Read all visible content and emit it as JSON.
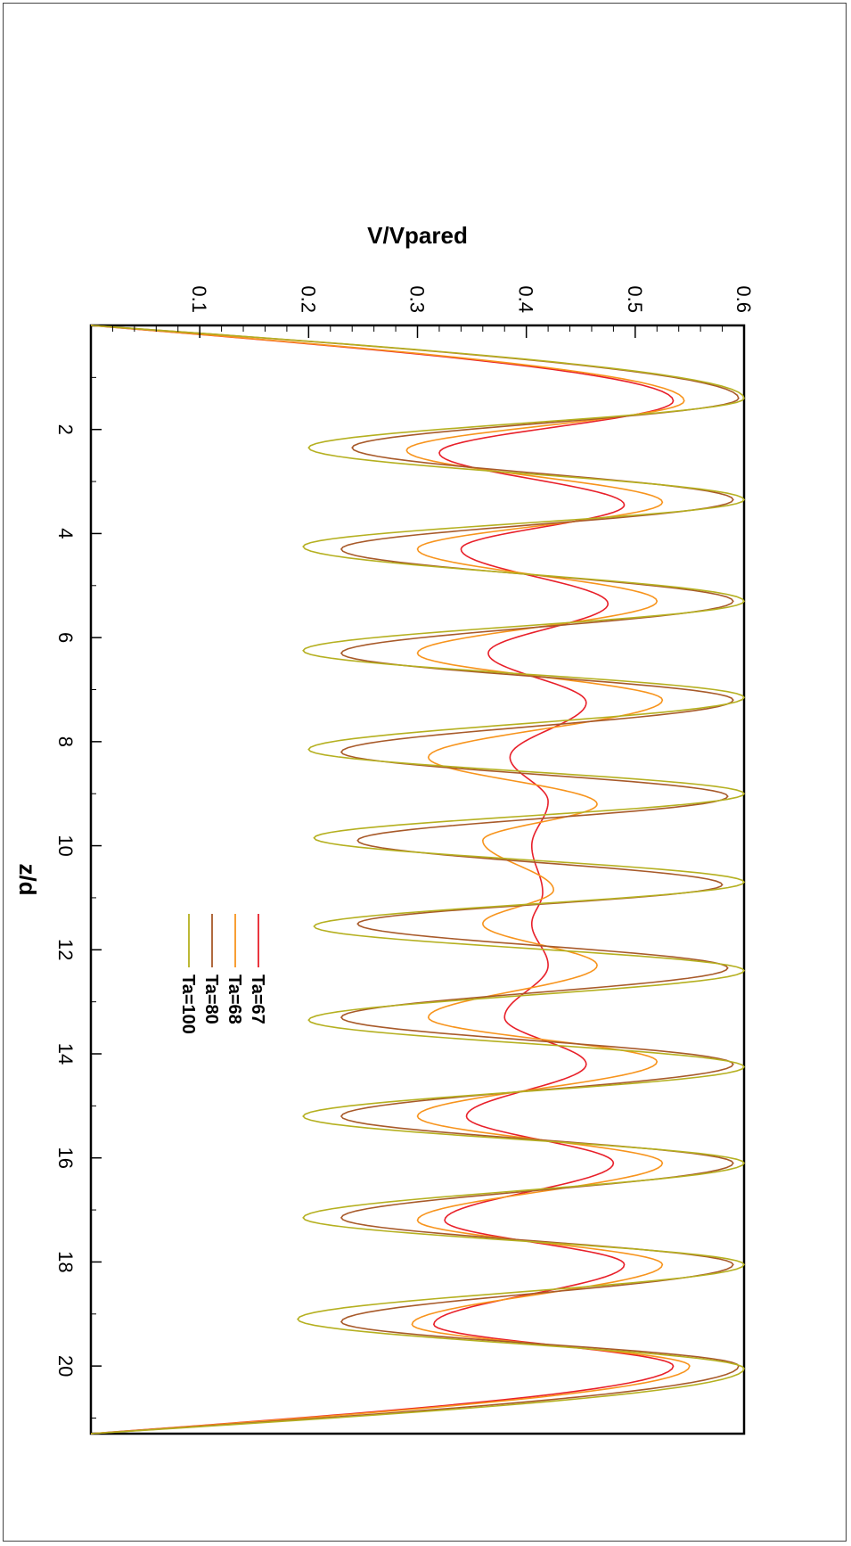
{
  "chart_data": {
    "type": "line",
    "xlabel": "z/d",
    "ylabel": "V/Vpared",
    "xlim": [
      0,
      21.3
    ],
    "ylim": [
      0,
      0.6
    ],
    "x_ticks": [
      2,
      4,
      6,
      8,
      10,
      12,
      14,
      16,
      18,
      20
    ],
    "x_tick_labels": [
      "2",
      "4",
      "6",
      "8",
      "10",
      "12",
      "14",
      "16",
      "18",
      "20"
    ],
    "y_ticks": [
      0.1,
      0.2,
      0.3,
      0.4,
      0.5,
      0.6
    ],
    "y_tick_labels": [
      "0.1",
      "0.2",
      "0.3",
      "0.4",
      "0.5",
      "0.6"
    ],
    "grid": false,
    "legend_position": "center",
    "orientation": "rotated 90 degrees clockwise",
    "series": [
      {
        "name": "Ta=67",
        "color": "#e8202a",
        "peaks": [
          [
            1.45,
            0.535
          ],
          [
            3.45,
            0.49
          ],
          [
            5.35,
            0.475
          ],
          [
            7.25,
            0.455
          ],
          [
            9.15,
            0.42
          ],
          [
            10.9,
            0.415
          ],
          [
            12.3,
            0.42
          ],
          [
            14.2,
            0.455
          ],
          [
            16.1,
            0.48
          ],
          [
            18.05,
            0.49
          ],
          [
            20.0,
            0.535
          ]
        ],
        "troughs": [
          [
            2.45,
            0.32
          ],
          [
            4.3,
            0.34
          ],
          [
            6.3,
            0.365
          ],
          [
            8.3,
            0.385
          ],
          [
            10.0,
            0.405
          ],
          [
            11.5,
            0.405
          ],
          [
            13.3,
            0.38
          ],
          [
            15.2,
            0.345
          ],
          [
            17.2,
            0.325
          ],
          [
            19.2,
            0.315
          ]
        ]
      },
      {
        "name": "Ta=68",
        "color": "#f7941d",
        "peaks": [
          [
            1.45,
            0.545
          ],
          [
            3.4,
            0.525
          ],
          [
            5.3,
            0.52
          ],
          [
            7.2,
            0.525
          ],
          [
            9.2,
            0.465
          ],
          [
            10.85,
            0.425
          ],
          [
            12.3,
            0.465
          ],
          [
            14.15,
            0.52
          ],
          [
            16.1,
            0.525
          ],
          [
            18.05,
            0.525
          ],
          [
            20.0,
            0.55
          ]
        ],
        "troughs": [
          [
            2.4,
            0.29
          ],
          [
            4.3,
            0.3
          ],
          [
            6.3,
            0.3
          ],
          [
            8.3,
            0.31
          ],
          [
            9.9,
            0.36
          ],
          [
            11.5,
            0.36
          ],
          [
            13.3,
            0.31
          ],
          [
            15.2,
            0.3
          ],
          [
            17.2,
            0.3
          ],
          [
            19.2,
            0.295
          ]
        ]
      },
      {
        "name": "Ta=80",
        "color": "#a85a2a",
        "peaks": [
          [
            1.4,
            0.595
          ],
          [
            3.35,
            0.59
          ],
          [
            5.3,
            0.59
          ],
          [
            7.2,
            0.59
          ],
          [
            9.05,
            0.585
          ],
          [
            10.75,
            0.58
          ],
          [
            12.35,
            0.585
          ],
          [
            14.2,
            0.59
          ],
          [
            16.1,
            0.59
          ],
          [
            18.05,
            0.59
          ],
          [
            20.0,
            0.595
          ]
        ],
        "troughs": [
          [
            2.35,
            0.24
          ],
          [
            4.3,
            0.23
          ],
          [
            6.3,
            0.23
          ],
          [
            8.2,
            0.23
          ],
          [
            9.9,
            0.245
          ],
          [
            11.5,
            0.245
          ],
          [
            13.3,
            0.23
          ],
          [
            15.2,
            0.23
          ],
          [
            17.15,
            0.23
          ],
          [
            19.15,
            0.23
          ]
        ]
      },
      {
        "name": "Ta=100",
        "color": "#b5b020",
        "peaks": [
          [
            1.4,
            0.6
          ],
          [
            3.35,
            0.6
          ],
          [
            5.3,
            0.6
          ],
          [
            7.15,
            0.6
          ],
          [
            9.0,
            0.6
          ],
          [
            10.7,
            0.6
          ],
          [
            12.4,
            0.6
          ],
          [
            14.25,
            0.6
          ],
          [
            16.1,
            0.6
          ],
          [
            18.05,
            0.6
          ],
          [
            20.05,
            0.6
          ]
        ],
        "troughs": [
          [
            2.35,
            0.2
          ],
          [
            4.25,
            0.195
          ],
          [
            6.25,
            0.195
          ],
          [
            8.15,
            0.2
          ],
          [
            9.85,
            0.205
          ],
          [
            11.55,
            0.205
          ],
          [
            13.35,
            0.2
          ],
          [
            15.2,
            0.195
          ],
          [
            17.15,
            0.195
          ],
          [
            19.1,
            0.19
          ]
        ]
      }
    ]
  }
}
